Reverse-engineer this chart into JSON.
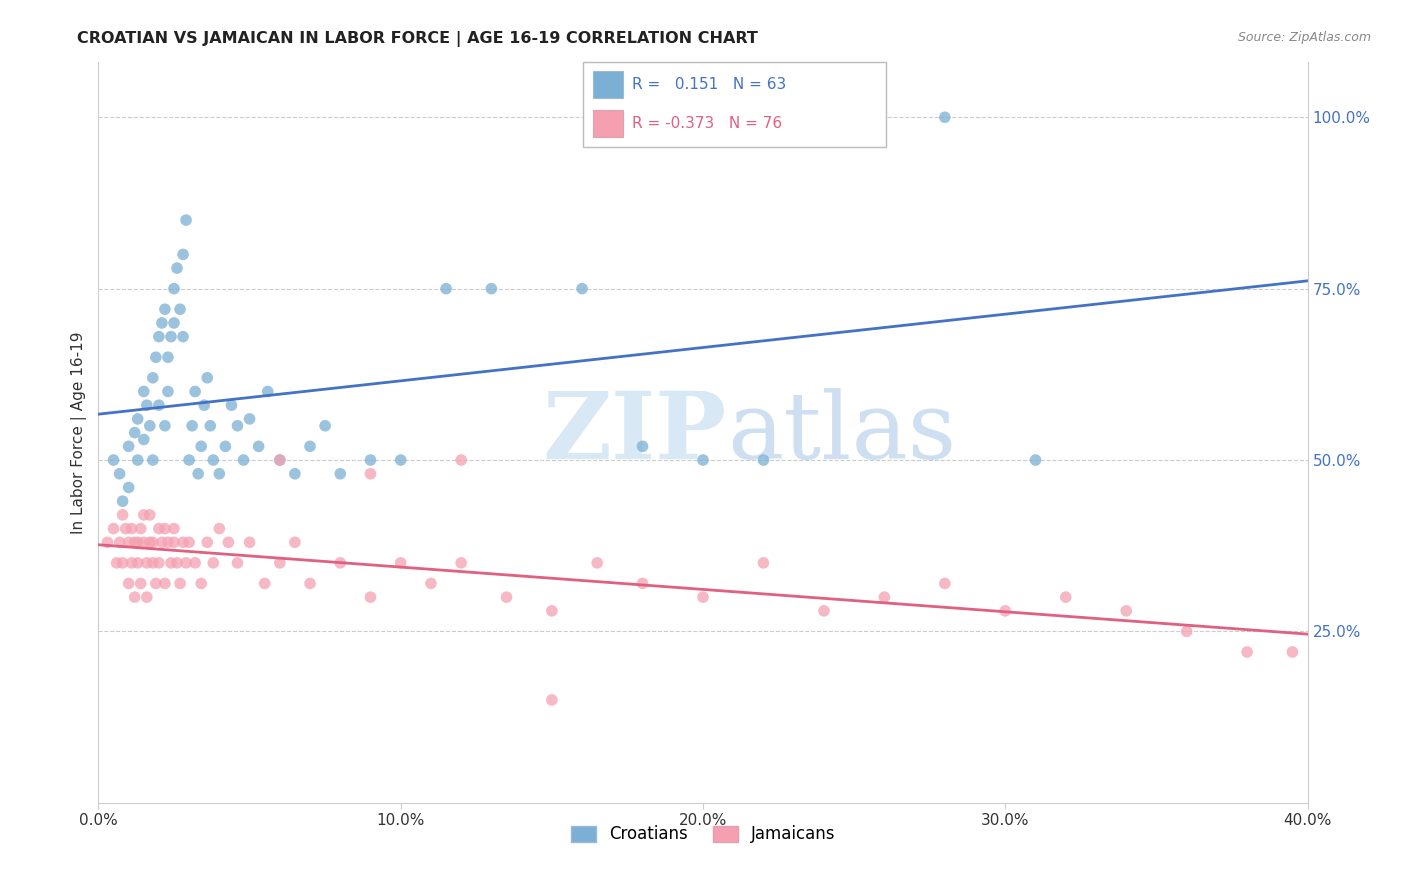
{
  "title": "CROATIAN VS JAMAICAN IN LABOR FORCE | AGE 16-19 CORRELATION CHART",
  "source": "Source: ZipAtlas.com",
  "ylabel": "In Labor Force | Age 16-19",
  "xlim": [
    0.0,
    0.4
  ],
  "ylim": [
    0.0,
    1.08
  ],
  "xlabel_vals": [
    0.0,
    0.1,
    0.2,
    0.3,
    0.4
  ],
  "ylabel_vals": [
    0.25,
    0.5,
    0.75,
    1.0
  ],
  "blue_color": "#7BAFD4",
  "pink_color": "#F4A0B0",
  "blue_line_color": "#4472C4",
  "pink_line_color": "#E06080",
  "watermark_color": "#D8E8F4",
  "legend_croatians": "Croatians",
  "legend_jamaicans": "Jamaicans",
  "blue_R": "0.151",
  "blue_N": "63",
  "pink_R": "-0.373",
  "pink_N": "76",
  "croatian_x": [
    0.005,
    0.007,
    0.008,
    0.01,
    0.01,
    0.012,
    0.013,
    0.013,
    0.015,
    0.015,
    0.016,
    0.017,
    0.018,
    0.018,
    0.019,
    0.02,
    0.02,
    0.021,
    0.022,
    0.022,
    0.023,
    0.023,
    0.024,
    0.025,
    0.025,
    0.026,
    0.027,
    0.028,
    0.028,
    0.029,
    0.03,
    0.031,
    0.032,
    0.033,
    0.034,
    0.035,
    0.036,
    0.037,
    0.038,
    0.04,
    0.042,
    0.044,
    0.046,
    0.048,
    0.05,
    0.053,
    0.056,
    0.06,
    0.065,
    0.07,
    0.075,
    0.08,
    0.09,
    0.1,
    0.115,
    0.13,
    0.16,
    0.18,
    0.2,
    0.22,
    0.25,
    0.28,
    0.31
  ],
  "croatian_y": [
    0.5,
    0.48,
    0.44,
    0.52,
    0.46,
    0.54,
    0.5,
    0.56,
    0.6,
    0.53,
    0.58,
    0.55,
    0.62,
    0.5,
    0.65,
    0.68,
    0.58,
    0.7,
    0.55,
    0.72,
    0.6,
    0.65,
    0.68,
    0.7,
    0.75,
    0.78,
    0.72,
    0.8,
    0.68,
    0.85,
    0.5,
    0.55,
    0.6,
    0.48,
    0.52,
    0.58,
    0.62,
    0.55,
    0.5,
    0.48,
    0.52,
    0.58,
    0.55,
    0.5,
    0.56,
    0.52,
    0.6,
    0.5,
    0.48,
    0.52,
    0.55,
    0.48,
    0.5,
    0.5,
    0.75,
    0.75,
    0.75,
    0.52,
    0.5,
    0.5,
    1.0,
    1.0,
    0.5
  ],
  "jamaican_x": [
    0.003,
    0.005,
    0.006,
    0.007,
    0.008,
    0.008,
    0.009,
    0.01,
    0.01,
    0.011,
    0.011,
    0.012,
    0.012,
    0.013,
    0.013,
    0.014,
    0.014,
    0.015,
    0.015,
    0.016,
    0.016,
    0.017,
    0.017,
    0.018,
    0.018,
    0.019,
    0.02,
    0.02,
    0.021,
    0.022,
    0.022,
    0.023,
    0.024,
    0.025,
    0.025,
    0.026,
    0.027,
    0.028,
    0.029,
    0.03,
    0.032,
    0.034,
    0.036,
    0.038,
    0.04,
    0.043,
    0.046,
    0.05,
    0.055,
    0.06,
    0.065,
    0.07,
    0.08,
    0.09,
    0.1,
    0.11,
    0.12,
    0.135,
    0.15,
    0.165,
    0.18,
    0.2,
    0.22,
    0.24,
    0.26,
    0.28,
    0.3,
    0.32,
    0.34,
    0.36,
    0.38,
    0.395,
    0.06,
    0.09,
    0.12,
    0.15
  ],
  "jamaican_y": [
    0.38,
    0.4,
    0.35,
    0.38,
    0.42,
    0.35,
    0.4,
    0.38,
    0.32,
    0.4,
    0.35,
    0.38,
    0.3,
    0.38,
    0.35,
    0.4,
    0.32,
    0.38,
    0.42,
    0.35,
    0.3,
    0.38,
    0.42,
    0.35,
    0.38,
    0.32,
    0.4,
    0.35,
    0.38,
    0.32,
    0.4,
    0.38,
    0.35,
    0.4,
    0.38,
    0.35,
    0.32,
    0.38,
    0.35,
    0.38,
    0.35,
    0.32,
    0.38,
    0.35,
    0.4,
    0.38,
    0.35,
    0.38,
    0.32,
    0.35,
    0.38,
    0.32,
    0.35,
    0.3,
    0.35,
    0.32,
    0.35,
    0.3,
    0.28,
    0.35,
    0.32,
    0.3,
    0.35,
    0.28,
    0.3,
    0.32,
    0.28,
    0.3,
    0.28,
    0.25,
    0.22,
    0.22,
    0.5,
    0.48,
    0.5,
    0.15
  ]
}
